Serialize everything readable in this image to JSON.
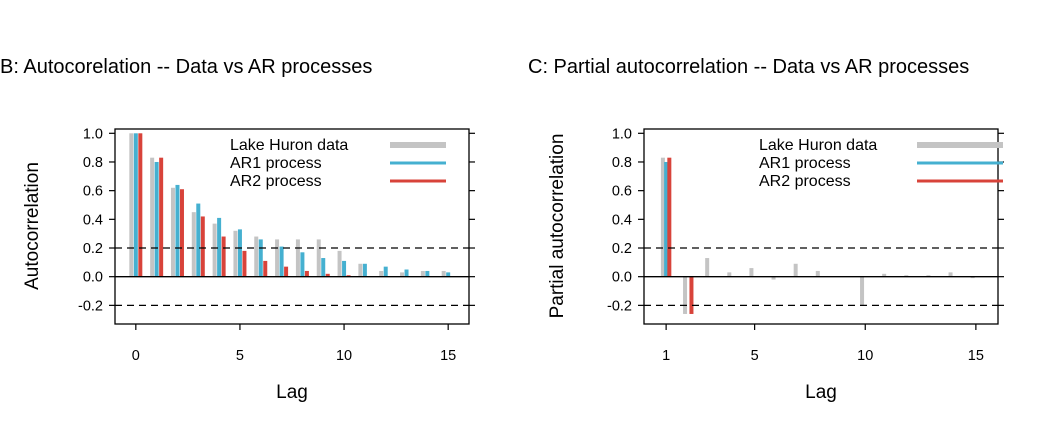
{
  "colors": {
    "lake": "#c4c4c4",
    "ar1": "#45b0d0",
    "ar2": "#d8433a",
    "frame": "#000000"
  },
  "chart_data": [
    {
      "type": "bar",
      "title": "B: Autocorelation -- Data vs AR processes",
      "xlabel": "Lag",
      "ylabel": "Autocorrelation",
      "xlim": [
        -1.0,
        16.0
      ],
      "ylim": [
        -0.33,
        1.03
      ],
      "xticks": [
        0,
        5,
        10,
        15
      ],
      "yticks": [
        -0.2,
        0.0,
        0.2,
        0.4,
        0.6,
        0.8,
        1.0
      ],
      "ytick_labels": [
        "-0.2",
        "0.0",
        "0.2",
        "0.4",
        "0.6",
        "0.8",
        "1.0"
      ],
      "ref_lines": [
        0.2,
        -0.2
      ],
      "grid": false,
      "legend_position": "top-right",
      "x": [
        0,
        1,
        2,
        3,
        4,
        5,
        6,
        7,
        8,
        9,
        10,
        11,
        12,
        13,
        14,
        15
      ],
      "series": [
        {
          "name": "Lake Huron data",
          "color_key": "lake",
          "values": [
            1.0,
            0.83,
            0.62,
            0.45,
            0.37,
            0.32,
            0.28,
            0.26,
            0.26,
            0.26,
            0.18,
            0.09,
            0.04,
            0.03,
            0.04,
            0.04
          ]
        },
        {
          "name": "AR1 process",
          "color_key": "ar1",
          "values": [
            1.0,
            0.8,
            0.64,
            0.51,
            0.41,
            0.33,
            0.26,
            0.21,
            0.17,
            0.13,
            0.11,
            0.09,
            0.07,
            0.05,
            0.04,
            0.03
          ]
        },
        {
          "name": "AR2 process",
          "color_key": "ar2",
          "values": [
            1.0,
            0.83,
            0.61,
            0.42,
            0.28,
            0.18,
            0.11,
            0.07,
            0.04,
            0.02,
            0.01,
            0.0,
            0.0,
            0.0,
            0.0,
            0.0
          ]
        }
      ]
    },
    {
      "type": "bar",
      "title": "C: Partial autocorrelation -- Data vs AR processes",
      "xlabel": "Lag",
      "ylabel": "Partial autocorrelation",
      "xlim": [
        0.0,
        16.0
      ],
      "ylim": [
        -0.33,
        1.03
      ],
      "xticks": [
        1,
        5,
        10,
        15
      ],
      "yticks": [
        -0.2,
        0.0,
        0.2,
        0.4,
        0.6,
        0.8,
        1.0
      ],
      "ytick_labels": [
        "-0.2",
        "0.0",
        "0.2",
        "0.4",
        "0.6",
        "0.8",
        "1.0"
      ],
      "ref_lines": [
        0.2,
        -0.2
      ],
      "grid": false,
      "legend_position": "top-right",
      "x": [
        1,
        2,
        3,
        4,
        5,
        6,
        7,
        8,
        9,
        10,
        11,
        12,
        13,
        14,
        15
      ],
      "series": [
        {
          "name": "Lake Huron data",
          "color_key": "lake",
          "values": [
            0.83,
            -0.26,
            0.13,
            0.03,
            0.06,
            -0.02,
            0.09,
            0.04,
            0.0,
            -0.2,
            0.02,
            0.01,
            0.01,
            0.03,
            -0.01
          ]
        },
        {
          "name": "AR1 process",
          "color_key": "ar1",
          "values": [
            0.8,
            0,
            0,
            0,
            0,
            0,
            0,
            0,
            0,
            0,
            0,
            0,
            0,
            0,
            0
          ]
        },
        {
          "name": "AR2 process",
          "color_key": "ar2",
          "values": [
            0.83,
            -0.26,
            0,
            0,
            0,
            0,
            0,
            0,
            0,
            0,
            0,
            0,
            0,
            0,
            0
          ]
        }
      ]
    }
  ]
}
